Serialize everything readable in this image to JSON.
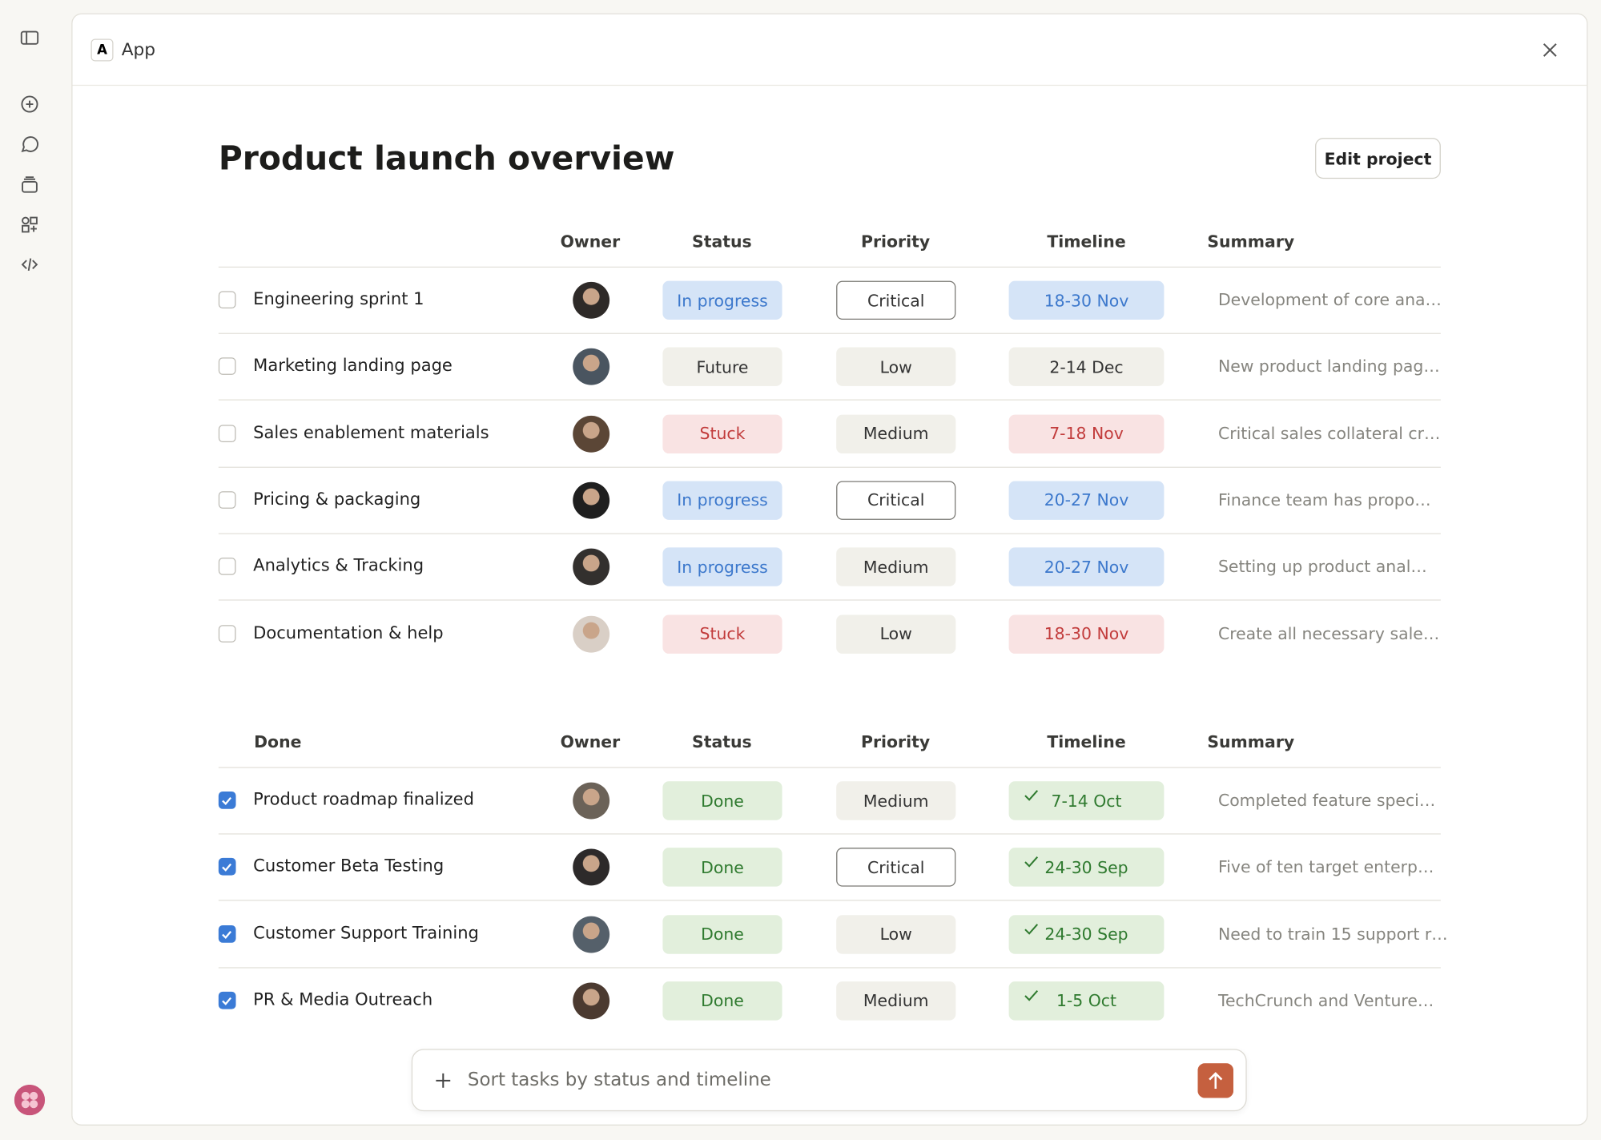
{
  "app": {
    "badge": "A",
    "name": "App"
  },
  "title": "Product launch overview",
  "edit_button": "Edit project",
  "active_table": {
    "columns": [
      "Owner",
      "Status",
      "Priority",
      "Timeline",
      "Summary"
    ],
    "rows": [
      {
        "task": "Engineering sprint 1",
        "status": "In progress",
        "priority": "Critical",
        "timeline": "18-30 Nov",
        "summary": "Development of core ana…"
      },
      {
        "task": "Marketing landing page",
        "status": "Future",
        "priority": "Low",
        "timeline": "2-14 Dec",
        "summary": "New product landing pag…"
      },
      {
        "task": "Sales enablement materials",
        "status": "Stuck",
        "priority": "Medium",
        "timeline": "7-18 Nov",
        "summary": "Critical sales collateral cr…"
      },
      {
        "task": "Pricing & packaging",
        "status": "In progress",
        "priority": "Critical",
        "timeline": "20-27 Nov",
        "summary": "Finance team has propo…"
      },
      {
        "task": "Analytics & Tracking",
        "status": "In progress",
        "priority": "Medium",
        "timeline": "20-27 Nov",
        "summary": "Setting up product anal…"
      },
      {
        "task": "Documentation & help",
        "status": "Stuck",
        "priority": "Low",
        "timeline": "18-30 Nov",
        "summary": "Create all necessary sale…"
      }
    ]
  },
  "done_table": {
    "columns": [
      "Done",
      "Owner",
      "Status",
      "Priority",
      "Timeline",
      "Summary"
    ],
    "rows": [
      {
        "task": "Product roadmap finalized",
        "status": "Done",
        "priority": "Medium",
        "timeline": "7-14 Oct",
        "summary": "Completed feature speci…"
      },
      {
        "task": "Customer Beta Testing",
        "status": "Done",
        "priority": "Critical",
        "timeline": "24-30 Sep",
        "summary": "Five of ten target enterp…"
      },
      {
        "task": "Customer Support Training",
        "status": "Done",
        "priority": "Low",
        "timeline": "24-30 Sep",
        "summary": "Need to train 15 support r…"
      },
      {
        "task": "PR & Media Outreach",
        "status": "Done",
        "priority": "Medium",
        "timeline": "1-5 Oct",
        "summary": "TechCrunch and Venture…"
      }
    ]
  },
  "prompt": {
    "placeholder": "Sort tasks by status and timeline"
  }
}
